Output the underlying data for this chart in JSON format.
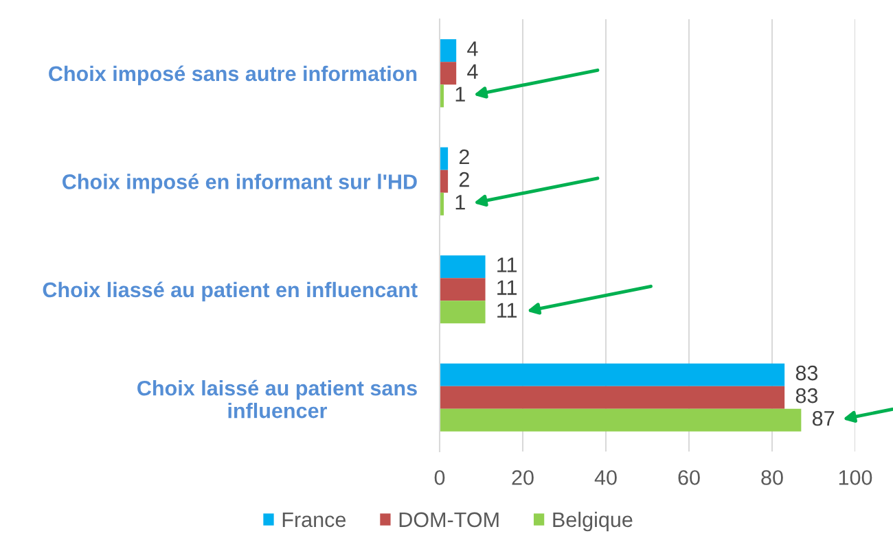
{
  "chart_data": {
    "type": "bar",
    "orientation": "horizontal",
    "categories": [
      "Choix imposé sans autre information",
      "Choix imposé en informant sur l'HD",
      "Choix liassé au patient en influencant",
      "Choix laissé au patient sans\ninfluencer"
    ],
    "series": [
      {
        "name": "France",
        "color": "#00b0f0",
        "values": [
          4,
          2,
          11,
          83
        ]
      },
      {
        "name": "DOM-TOM",
        "color": "#c0504d",
        "values": [
          4,
          2,
          11,
          83
        ]
      },
      {
        "name": "Belgique",
        "color": "#92d050",
        "values": [
          1,
          1,
          11,
          87
        ]
      }
    ],
    "xlim": [
      0,
      100
    ],
    "xticks": [
      0,
      20,
      40,
      60,
      80,
      100
    ],
    "grid": "x",
    "legend": "bottom",
    "data_labels": true
  }
}
